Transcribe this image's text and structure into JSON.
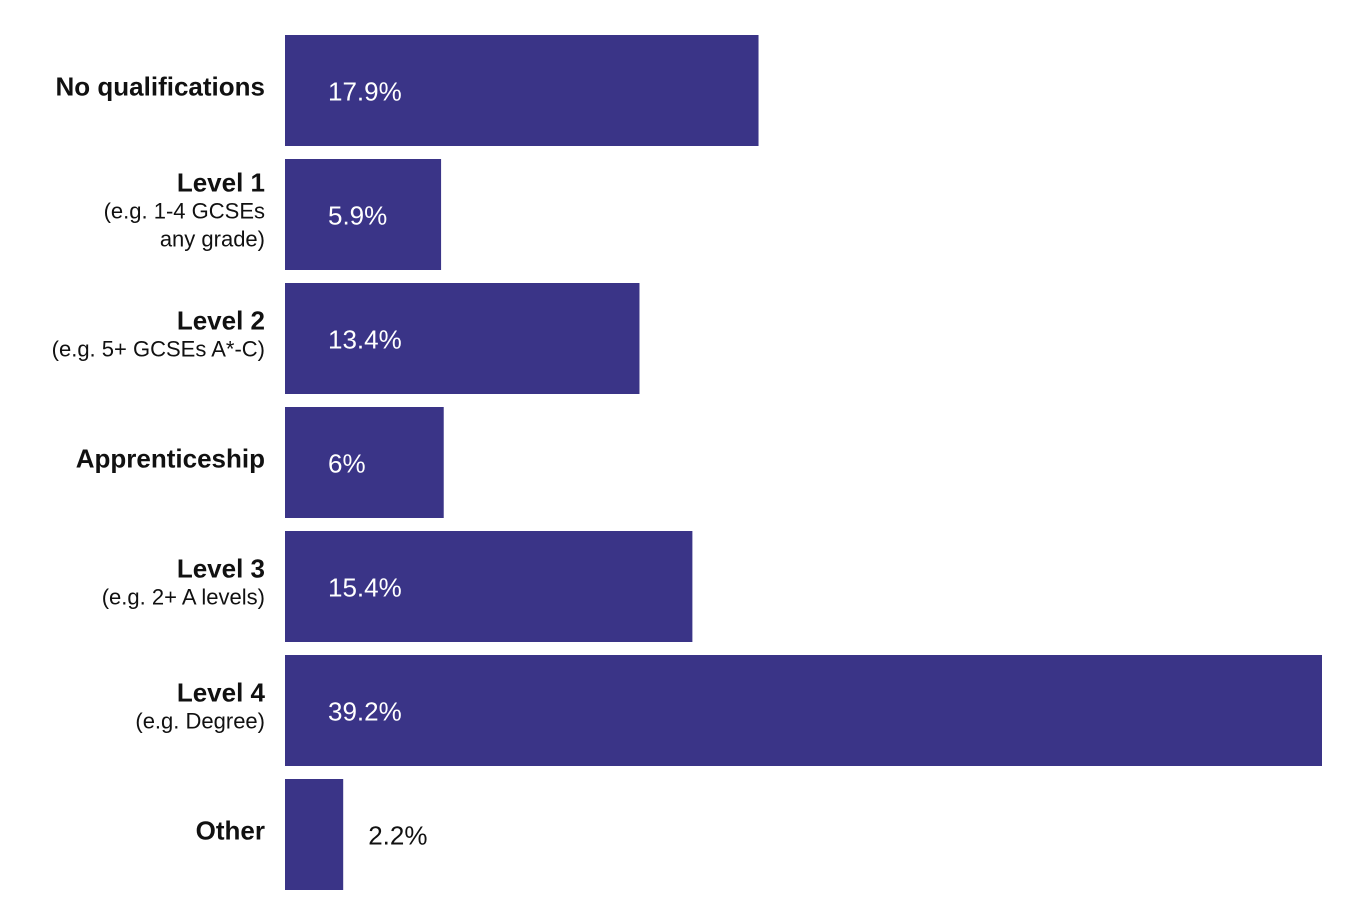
{
  "chart_data": {
    "type": "barh",
    "categories": [
      "No qualifications",
      "Level 1",
      "Level 2",
      "Apprenticeship",
      "Level 3",
      "Level 4",
      "Other"
    ],
    "category_notes": [
      null,
      [
        "(e.g. 1-4 GCSEs",
        "any grade)"
      ],
      [
        "(e.g. 5+ GCSEs A*-C)"
      ],
      null,
      [
        "(e.g. 2+ A levels)"
      ],
      [
        "(e.g. Degree)"
      ],
      null
    ],
    "values": [
      17.9,
      5.9,
      13.4,
      6,
      15.4,
      39.2,
      2.2
    ],
    "value_labels": [
      "17.9%",
      "5.9%",
      "13.4%",
      "6%",
      "15.4%",
      "39.2%",
      "2.2%"
    ],
    "color": "#3a3487"
  }
}
